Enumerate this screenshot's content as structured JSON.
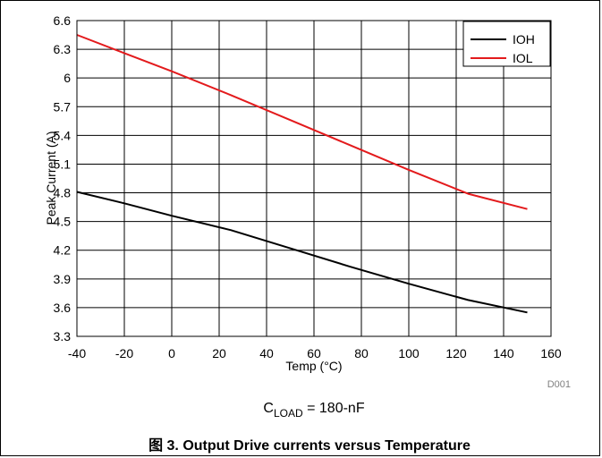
{
  "chart_data": {
    "type": "line",
    "xlabel": "Temp (°C)",
    "ylabel": "Peak Current (A)",
    "xlim": [
      -40,
      160
    ],
    "ylim": [
      3.3,
      6.6
    ],
    "x_ticks": [
      "-40",
      "-20",
      "0",
      "20",
      "40",
      "60",
      "80",
      "100",
      "120",
      "140",
      "160"
    ],
    "y_ticks": [
      "3.3",
      "3.6",
      "3.9",
      "4.2",
      "4.5",
      "4.8",
      "5.1",
      "5.4",
      "5.7",
      "6",
      "6.3",
      "6.6"
    ],
    "grid": true,
    "legend_position": "top-right",
    "series": [
      {
        "name": "IOH",
        "color": "#000000",
        "x": [
          -40,
          -20,
          0,
          25,
          50,
          75,
          100,
          125,
          150
        ],
        "y": [
          4.81,
          4.69,
          4.56,
          4.41,
          4.22,
          4.03,
          3.85,
          3.68,
          3.55
        ]
      },
      {
        "name": "IOL",
        "color": "#e31a1c",
        "x": [
          -40,
          -20,
          0,
          25,
          50,
          75,
          100,
          125,
          150
        ],
        "y": [
          6.45,
          6.26,
          6.07,
          5.82,
          5.56,
          5.3,
          5.04,
          4.79,
          4.63
        ]
      }
    ]
  },
  "code_label": "D001",
  "condition": {
    "prefix": "C",
    "subscript": "LOAD",
    "suffix": " = 180-nF"
  },
  "caption": "图 3. Output Drive currents versus Temperature"
}
